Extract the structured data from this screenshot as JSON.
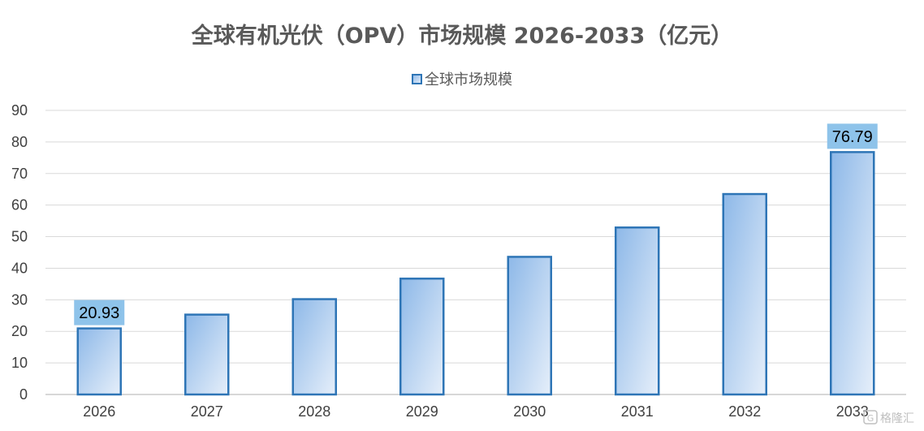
{
  "chart_data": {
    "type": "bar",
    "title": "全球有机光伏（OPV）市场规模 2026-2033（亿元）",
    "categories": [
      "2026",
      "2027",
      "2028",
      "2029",
      "2030",
      "2031",
      "2032",
      "2033"
    ],
    "series": [
      {
        "name": "全球市场规模",
        "values": [
          20.93,
          25.3,
          30.2,
          36.7,
          43.6,
          52.9,
          63.5,
          76.79
        ]
      }
    ],
    "data_labels": [
      {
        "category": "2026",
        "text": "20.93"
      },
      {
        "category": "2033",
        "text": "76.79"
      }
    ],
    "ylim": [
      0,
      90
    ],
    "yticks": [
      0,
      10,
      20,
      30,
      40,
      50,
      60,
      70,
      80,
      90
    ],
    "xlabel": "",
    "ylabel": "",
    "grid": true,
    "legend_position": "top-center"
  },
  "colors": {
    "bar_fill_start": "#8db8e8",
    "bar_fill_end": "#e6effa",
    "bar_border": "#2e75b6",
    "label_bg": "#8ec3ea",
    "gridline": "#d9d9d9",
    "title": "#595959"
  },
  "watermark": {
    "icon": "gelonghui-logo-icon",
    "text": "格隆汇"
  }
}
